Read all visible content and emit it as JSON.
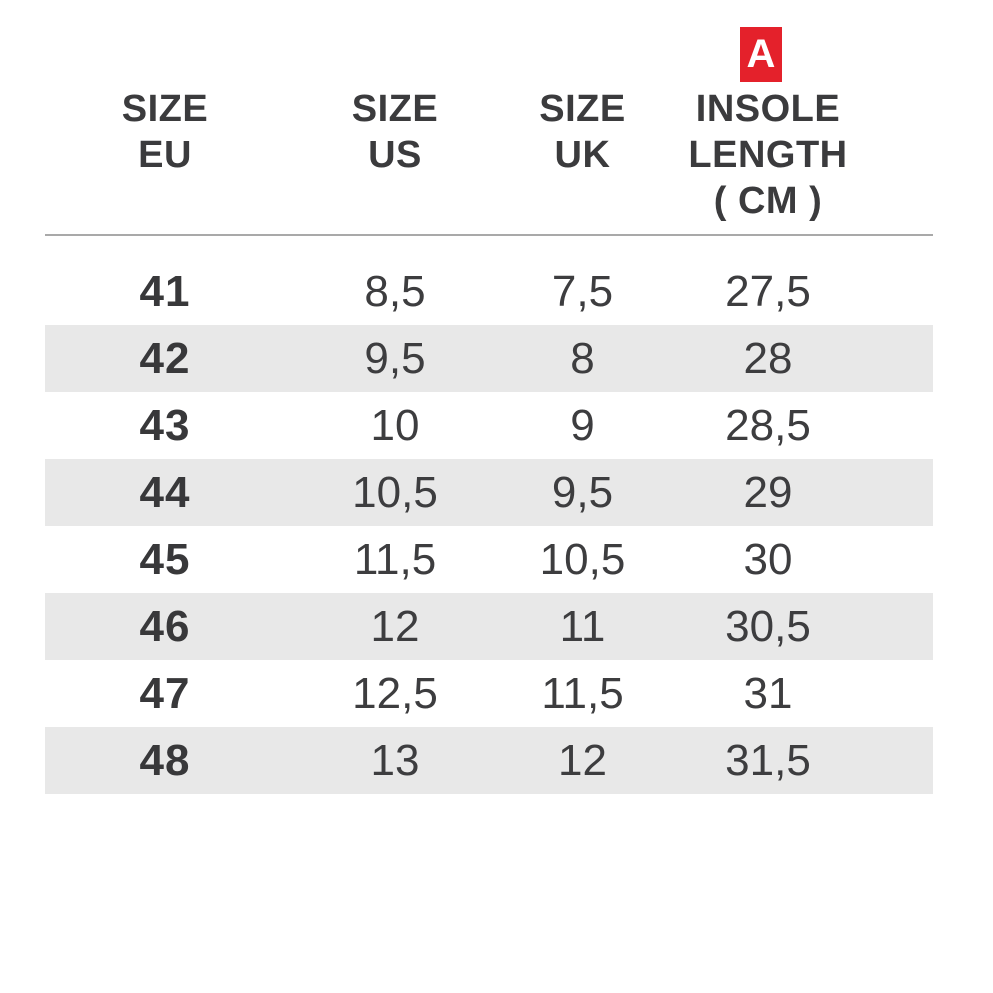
{
  "chart_data": {
    "type": "table",
    "badge": {
      "label": "A"
    },
    "columns": [
      {
        "id": "eu",
        "line1": "SIZE",
        "line2": "EU"
      },
      {
        "id": "us",
        "line1": "SIZE",
        "line2": "US"
      },
      {
        "id": "uk",
        "line1": "SIZE",
        "line2": "UK"
      },
      {
        "id": "insole",
        "line1": "INSOLE",
        "line2": "LENGTH",
        "line3": "( CM )"
      }
    ],
    "rows": [
      {
        "eu": "41",
        "us": "8,5",
        "uk": "7,5",
        "insole": "27,5"
      },
      {
        "eu": "42",
        "us": "9,5",
        "uk": "8",
        "insole": "28"
      },
      {
        "eu": "43",
        "us": "10",
        "uk": "9",
        "insole": "28,5"
      },
      {
        "eu": "44",
        "us": "10,5",
        "uk": "9,5",
        "insole": "29"
      },
      {
        "eu": "45",
        "us": "11,5",
        "uk": "10,5",
        "insole": "30"
      },
      {
        "eu": "46",
        "us": "12",
        "uk": "11",
        "insole": "30,5"
      },
      {
        "eu": "47",
        "us": "12,5",
        "uk": "11,5",
        "insole": "31"
      },
      {
        "eu": "48",
        "us": "13",
        "uk": "12",
        "insole": "31,5"
      }
    ],
    "layout": {
      "stripe_style": "alternating rows, even rows shaded",
      "legend_position": "none",
      "grid": "off"
    },
    "colors": {
      "badge_red": "#e4212b",
      "row_alt_gray": "#e8e8e8",
      "text_dark": "#3b3b3d",
      "divider_gray": "#a9a9a9"
    }
  }
}
